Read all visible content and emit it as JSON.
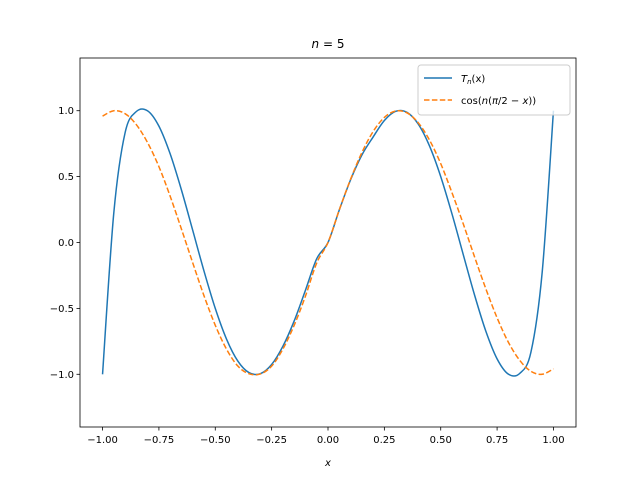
{
  "chart_data": {
    "type": "line",
    "title": "n = 5",
    "title_prefix": "n",
    "title_suffix": " = 5",
    "xlabel": "x",
    "ylabel": "",
    "xlim": [
      -1.1,
      1.1
    ],
    "ylim": [
      -1.4,
      1.4
    ],
    "xticks": [
      -1.0,
      -0.75,
      -0.5,
      -0.25,
      0.0,
      0.25,
      0.5,
      0.75,
      1.0
    ],
    "xtick_labels": [
      "−1.00",
      "−0.75",
      "−0.50",
      "−0.25",
      "0.00",
      "0.25",
      "0.50",
      "0.75",
      "1.00"
    ],
    "yticks": [
      -1.0,
      -0.5,
      0.0,
      0.5,
      1.0
    ],
    "ytick_labels": [
      "−1.0",
      "−0.5",
      "0.0",
      "0.5",
      "1.0"
    ],
    "grid": false,
    "legend_position": "top-right",
    "x": [
      -1.0,
      -0.95,
      -0.9,
      -0.85,
      -0.8,
      -0.75,
      -0.7,
      -0.65,
      -0.6,
      -0.55,
      -0.5,
      -0.45,
      -0.4,
      -0.35,
      -0.3,
      -0.25,
      -0.2,
      -0.15,
      -0.1,
      -0.05,
      0.0,
      0.05,
      0.1,
      0.15,
      0.2,
      0.25,
      0.3,
      0.35,
      0.4,
      0.45,
      0.5,
      0.55,
      0.6,
      0.65,
      0.7,
      0.75,
      0.8,
      0.85,
      0.9,
      0.95,
      1.0
    ],
    "series": [
      {
        "name": "T_n(x)",
        "legend_parts": [
          "T",
          "n",
          "(x)"
        ],
        "color": "#1f77b4",
        "style": "solid",
        "values": [
          -1.0,
          0.2262,
          0.8328,
          0.9939,
          0.9987,
          0.8828,
          0.6723,
          0.3983,
          0.0922,
          -0.2166,
          -0.5,
          -0.7335,
          -0.8997,
          -0.988,
          -0.9955,
          -0.9258,
          -0.7869,
          -0.5951,
          -0.3621,
          -0.1227,
          0.0,
          0.2462,
          0.4752,
          0.663,
          0.8003,
          0.9258,
          0.9955,
          0.988,
          0.8997,
          0.7335,
          0.5,
          0.2166,
          -0.0922,
          -0.3983,
          -0.6723,
          -0.8828,
          -0.9987,
          -0.9939,
          -0.8328,
          -0.2262,
          1.0
        ]
      },
      {
        "name": "cos(n(π/2 − x))",
        "legend_parts": [
          "cos(",
          "n",
          "(",
          "π",
          "/2 − ",
          "x",
          "))"
        ],
        "color": "#ff7f0e",
        "style": "dashed",
        "values": [
          0.9589,
          0.9999,
          0.9775,
          0.894,
          0.7568,
          0.5758,
          0.3508,
          0.1018,
          -0.1543,
          -0.404,
          -0.6282,
          -0.8096,
          -0.9375,
          -0.9964,
          -0.9975,
          -0.9382,
          -0.8085,
          -0.6283,
          -0.4069,
          -0.1548,
          0.0,
          0.2474,
          0.4794,
          0.6816,
          0.8415,
          0.949,
          0.9975,
          0.984,
          0.9093,
          0.7781,
          0.5985,
          0.3775,
          0.1411,
          -0.1089,
          -0.3508,
          -0.5716,
          -0.7568,
          -0.8934,
          -0.9775,
          -0.9997,
          -0.9589
        ]
      }
    ]
  }
}
